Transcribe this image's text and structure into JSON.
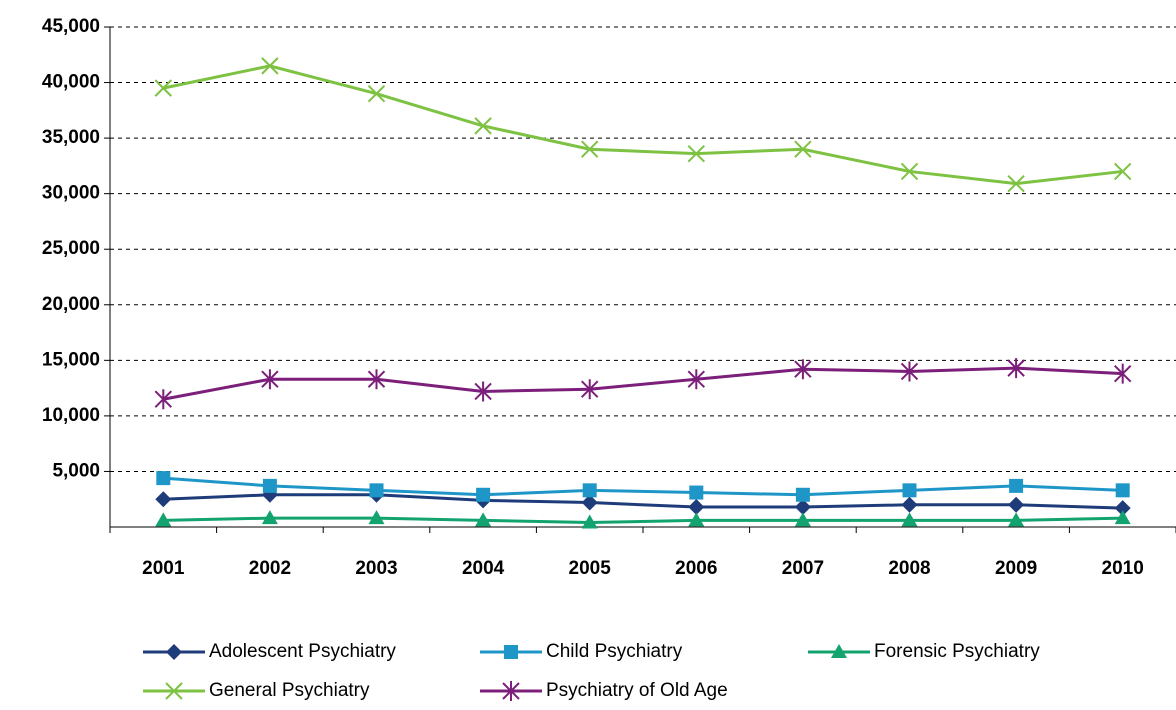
{
  "chart_data": {
    "type": "line",
    "categories": [
      "2001",
      "2002",
      "2003",
      "2004",
      "2005",
      "2006",
      "2007",
      "2008",
      "2009",
      "2010"
    ],
    "series": [
      {
        "name": "Adolescent Psychiatry",
        "color": "#1f3c7a",
        "marker": "diamond",
        "values": [
          2500,
          2900,
          2900,
          2400,
          2200,
          1800,
          1800,
          2000,
          2000,
          1700
        ]
      },
      {
        "name": "Child Psychiatry",
        "color": "#1e96c8",
        "marker": "square",
        "values": [
          4400,
          3700,
          3300,
          2900,
          3300,
          3100,
          2900,
          3300,
          3700,
          3300
        ]
      },
      {
        "name": "Forensic Psychiatry",
        "color": "#12a36e",
        "marker": "triangle",
        "values": [
          600,
          800,
          800,
          600,
          400,
          600,
          600,
          600,
          600,
          800
        ]
      },
      {
        "name": "General Psychiatry",
        "color": "#7dc242",
        "marker": "x",
        "values": [
          39500,
          41500,
          39000,
          36100,
          34000,
          33600,
          34000,
          32000,
          30900,
          32000
        ]
      },
      {
        "name": "Psychiatry of Old Age",
        "color": "#7b1f7b",
        "marker": "star",
        "values": [
          11500,
          13300,
          13300,
          12200,
          12400,
          13300,
          14200,
          14000,
          14300,
          13800
        ]
      }
    ],
    "ylim": [
      0,
      45000
    ],
    "yticks": [
      {
        "value": 5000,
        "label": "5,000"
      },
      {
        "value": 10000,
        "label": "10,000"
      },
      {
        "value": 15000,
        "label": "15,000"
      },
      {
        "value": 20000,
        "label": "20,000"
      },
      {
        "value": 25000,
        "label": "25,000"
      },
      {
        "value": 30000,
        "label": "30,000"
      },
      {
        "value": 35000,
        "label": "35,000"
      },
      {
        "value": 40000,
        "label": "40,000"
      },
      {
        "value": 45000,
        "label": "45,000"
      }
    ],
    "grid": true
  }
}
